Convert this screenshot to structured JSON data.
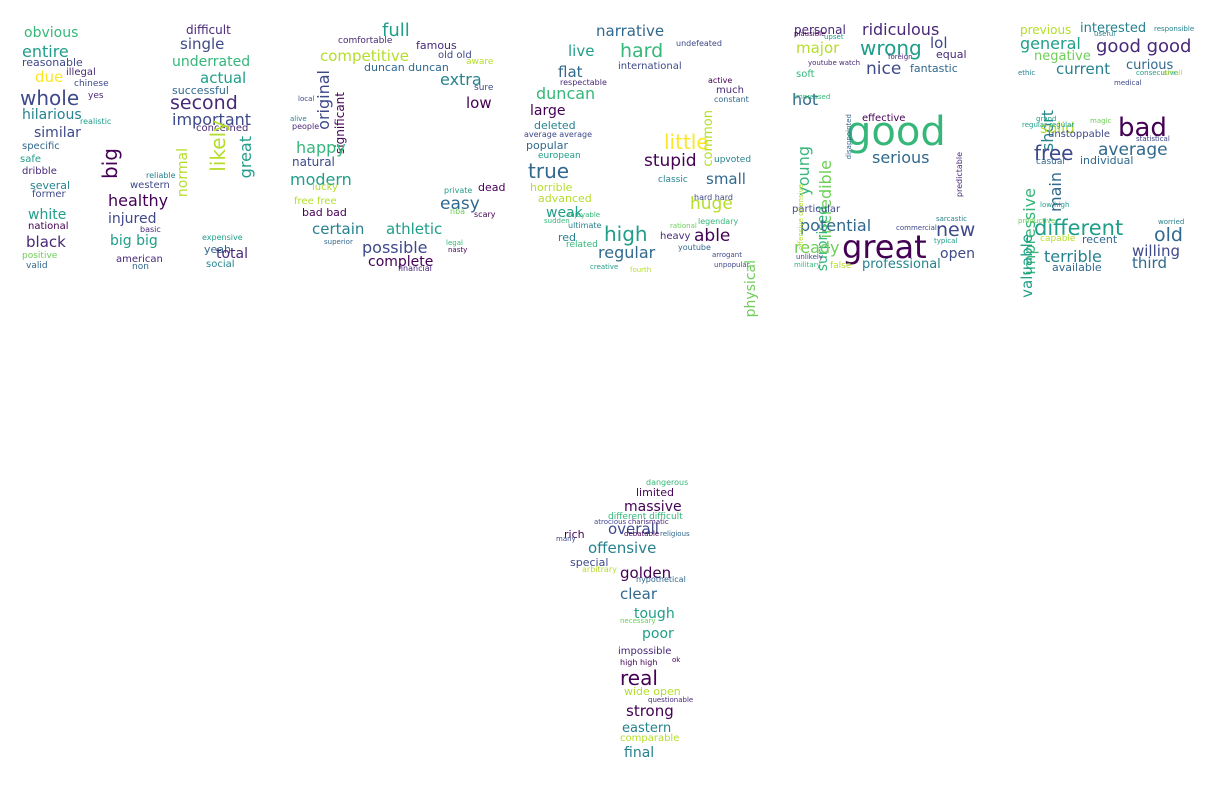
{
  "palette": [
    "#440154",
    "#482878",
    "#3e4989",
    "#31688e",
    "#26828e",
    "#1f9e89",
    "#35b779",
    "#6ece58",
    "#b5de2b",
    "#fde725"
  ],
  "groups": [
    {
      "name": "N",
      "words": [
        [
          "obvious",
          1
        ],
        [
          "entire",
          2
        ],
        [
          "reasonable",
          3
        ],
        [
          "due",
          4
        ],
        [
          "illegal",
          5
        ],
        [
          "whole",
          6
        ],
        [
          "hilarious",
          7
        ],
        [
          "similar",
          8
        ],
        [
          "specific",
          9
        ],
        [
          "safe",
          10
        ],
        [
          "dribble",
          11
        ],
        [
          "several",
          12
        ],
        [
          "former",
          13
        ],
        [
          "white",
          14
        ],
        [
          "national",
          15
        ],
        [
          "black",
          16
        ],
        [
          "positive",
          17
        ],
        [
          "valid",
          18
        ],
        [
          "big",
          19
        ],
        [
          "healthy",
          20
        ],
        [
          "injured",
          21
        ],
        [
          "big big",
          22
        ],
        [
          "american",
          23
        ],
        [
          "non",
          24
        ],
        [
          "difficult",
          25
        ],
        [
          "single",
          26
        ],
        [
          "underrated",
          27
        ],
        [
          "actual",
          28
        ],
        [
          "successful",
          29
        ],
        [
          "second",
          30
        ],
        [
          "important",
          31
        ],
        [
          "concerned",
          32
        ],
        [
          "likely",
          33
        ],
        [
          "great",
          34
        ],
        [
          "normal",
          35
        ],
        [
          "western",
          36
        ],
        [
          "reliable",
          37
        ],
        [
          "basic",
          38
        ],
        [
          "yeah",
          39
        ],
        [
          "expensive",
          40
        ],
        [
          "social",
          41
        ],
        [
          "total",
          42
        ],
        [
          "yes",
          43
        ],
        [
          "chinese",
          44
        ],
        [
          "realistic",
          45
        ]
      ]
    },
    {
      "name": "O",
      "words": [
        [
          "full",
          46
        ],
        [
          "competitive",
          47
        ],
        [
          "famous",
          48
        ],
        [
          "old old",
          49
        ],
        [
          "original",
          50
        ],
        [
          "significant",
          51
        ],
        [
          "duncan duncan",
          52
        ],
        [
          "extra",
          53
        ],
        [
          "sure",
          54
        ],
        [
          "low",
          55
        ],
        [
          "happy",
          56
        ],
        [
          "natural",
          57
        ],
        [
          "modern",
          58
        ],
        [
          "lucky",
          59
        ],
        [
          "free free",
          60
        ],
        [
          "bad bad",
          61
        ],
        [
          "certain",
          62
        ],
        [
          "athletic",
          63
        ],
        [
          "easy",
          64
        ],
        [
          "dead",
          65
        ],
        [
          "possible",
          66
        ],
        [
          "complete",
          67
        ],
        [
          "comfortable",
          68
        ],
        [
          "private",
          69
        ],
        [
          "nba",
          70
        ],
        [
          "scary",
          71
        ],
        [
          "legal",
          72
        ],
        [
          "nasty",
          73
        ],
        [
          "financial",
          74
        ],
        [
          "superior",
          75
        ],
        [
          "aware",
          76
        ],
        [
          "local",
          77
        ],
        [
          "people",
          78
        ],
        [
          "alive",
          79
        ]
      ]
    },
    {
      "name": "U",
      "words": [
        [
          "narrative",
          80
        ],
        [
          "hard",
          81
        ],
        [
          "live",
          82
        ],
        [
          "flat",
          83
        ],
        [
          "international",
          84
        ],
        [
          "duncan",
          85
        ],
        [
          "large",
          86
        ],
        [
          "deleted",
          87
        ],
        [
          "popular",
          88
        ],
        [
          "true",
          89
        ],
        [
          "european",
          90
        ],
        [
          "horrible",
          91
        ],
        [
          "advanced",
          92
        ],
        [
          "weak",
          93
        ],
        [
          "red",
          94
        ],
        [
          "related",
          95
        ],
        [
          "high",
          96
        ],
        [
          "regular",
          97
        ],
        [
          "little",
          98
        ],
        [
          "stupid",
          99
        ],
        [
          "classic",
          100
        ],
        [
          "small",
          101
        ],
        [
          "able",
          102
        ],
        [
          "huge",
          103
        ],
        [
          "heavy",
          104
        ],
        [
          "physical",
          105
        ],
        [
          "common",
          106
        ],
        [
          "much",
          107
        ],
        [
          "constant",
          108
        ],
        [
          "upvoted",
          109
        ],
        [
          "undefeated",
          110
        ],
        [
          "legendary",
          111
        ],
        [
          "youtube",
          112
        ],
        [
          "unpopular",
          113
        ],
        [
          "active",
          114
        ],
        [
          "respectable",
          115
        ],
        [
          "ultimate",
          116
        ],
        [
          "sudden",
          117
        ],
        [
          "enjoyable",
          118
        ],
        [
          "creative",
          119
        ],
        [
          "fourth",
          120
        ],
        [
          "arrogant",
          121
        ],
        [
          "rational",
          122
        ],
        [
          "average average",
          123
        ],
        [
          "hard hard",
          124
        ]
      ]
    },
    {
      "name": "R",
      "words": [
        [
          "personal",
          125
        ],
        [
          "ridiculous",
          126
        ],
        [
          "major",
          127
        ],
        [
          "wrong",
          128
        ],
        [
          "lol",
          129
        ],
        [
          "nice",
          130
        ],
        [
          "fantastic",
          131
        ],
        [
          "equal",
          132
        ],
        [
          "hot",
          133
        ],
        [
          "soft",
          134
        ],
        [
          "youtube watch",
          135
        ],
        [
          "good",
          136
        ],
        [
          "young",
          137
        ],
        [
          "incredible",
          138
        ],
        [
          "surprised",
          139
        ],
        [
          "serious",
          140
        ],
        [
          "effective",
          141
        ],
        [
          "particular",
          142
        ],
        [
          "potential",
          143
        ],
        [
          "new",
          144
        ],
        [
          "great",
          145
        ],
        [
          "ready",
          146
        ],
        [
          "open",
          147
        ],
        [
          "professional",
          148
        ],
        [
          "false",
          149
        ],
        [
          "unlikely",
          150
        ],
        [
          "military",
          151
        ],
        [
          "sarcastic",
          152
        ],
        [
          "commercial",
          153
        ],
        [
          "typical",
          154
        ],
        [
          "predictable",
          155
        ],
        [
          "impressed",
          156
        ],
        [
          "disappointed",
          157
        ],
        [
          "offensive offensive",
          158
        ],
        [
          "plausible",
          159
        ],
        [
          "upset",
          160
        ],
        [
          "foreign",
          161
        ]
      ]
    },
    {
      "name": "E",
      "words": [
        [
          "previous",
          162
        ],
        [
          "interested",
          163
        ],
        [
          "general",
          164
        ],
        [
          "good good",
          165
        ],
        [
          "negative",
          166
        ],
        [
          "current",
          167
        ],
        [
          "curious",
          168
        ],
        [
          "short",
          169
        ],
        [
          "impressive",
          170
        ],
        [
          "solid",
          171
        ],
        [
          "bad",
          172
        ],
        [
          "unstoppable",
          173
        ],
        [
          "free",
          174
        ],
        [
          "average",
          175
        ],
        [
          "casual",
          176
        ],
        [
          "individual",
          177
        ],
        [
          "main",
          178
        ],
        [
          "low high",
          179
        ],
        [
          "different",
          180
        ],
        [
          "valuable",
          181
        ],
        [
          "capable",
          182
        ],
        [
          "recent",
          183
        ],
        [
          "old",
          184
        ],
        [
          "terrible",
          185
        ],
        [
          "willing",
          186
        ],
        [
          "available",
          187
        ],
        [
          "third",
          188
        ],
        [
          "worried",
          189
        ],
        [
          "medical",
          190
        ],
        [
          "statistical",
          191
        ],
        [
          "consecutive",
          192
        ],
        [
          "responsible",
          193
        ],
        [
          "useful",
          194
        ],
        [
          "ethic",
          195
        ],
        [
          "regular regular",
          196
        ],
        [
          "productive",
          197
        ],
        [
          "grand",
          198
        ],
        [
          "magic",
          199
        ],
        [
          "small",
          200
        ]
      ]
    },
    {
      "name": "1",
      "words": [
        [
          "dangerous",
          201
        ],
        [
          "limited",
          202
        ],
        [
          "massive",
          203
        ],
        [
          "overall",
          204
        ],
        [
          "rich",
          205
        ],
        [
          "offensive",
          206
        ],
        [
          "special",
          207
        ],
        [
          "arbitrary",
          208
        ],
        [
          "golden",
          209
        ],
        [
          "hypothetical",
          210
        ],
        [
          "clear",
          211
        ],
        [
          "tough",
          212
        ],
        [
          "poor",
          213
        ],
        [
          "impossible",
          214
        ],
        [
          "high high",
          215
        ],
        [
          "ok",
          216
        ],
        [
          "real",
          217
        ],
        [
          "wide open",
          218
        ],
        [
          "strong",
          219
        ],
        [
          "eastern",
          220
        ],
        [
          "comparable",
          221
        ],
        [
          "final",
          222
        ],
        [
          "different difficult",
          223
        ],
        [
          "many",
          224
        ],
        [
          "atrocious",
          225
        ],
        [
          "charismatic",
          226
        ],
        [
          "debatable",
          227
        ],
        [
          "religious",
          228
        ],
        [
          "necessary",
          229
        ],
        [
          "questionable",
          230
        ]
      ]
    }
  ]
}
